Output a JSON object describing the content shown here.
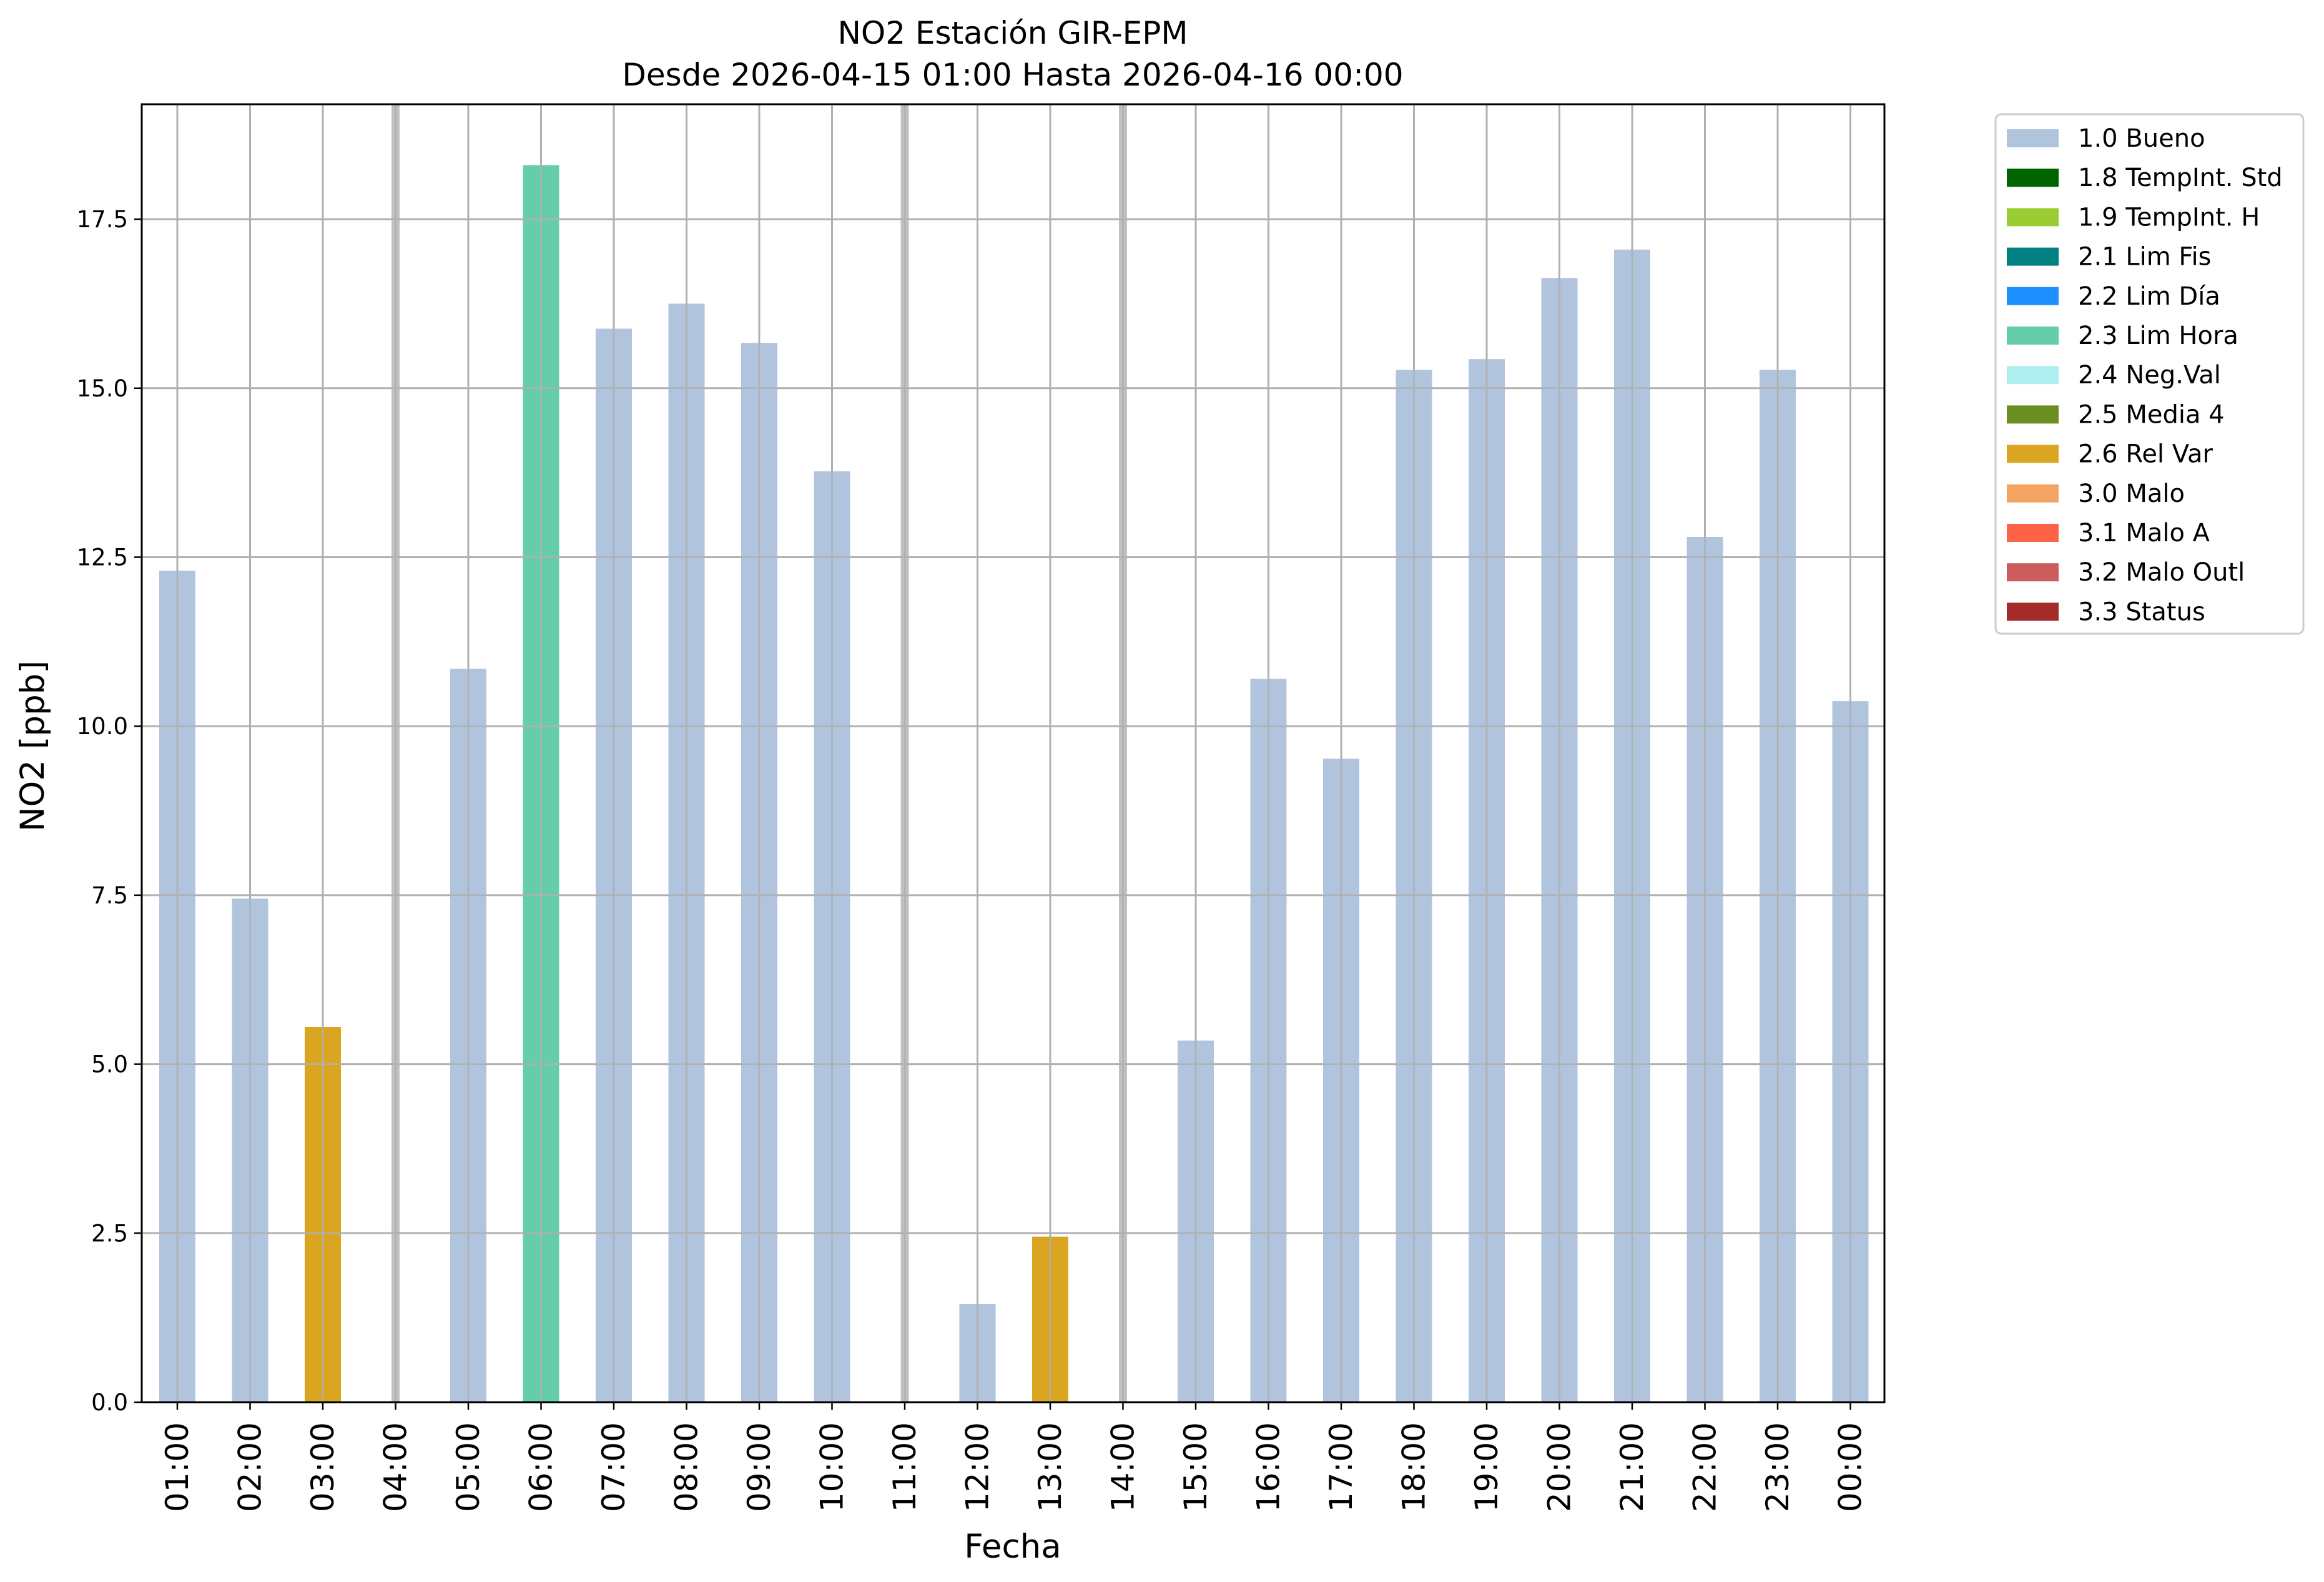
{
  "chart_data": {
    "type": "bar",
    "title": "NO2 Estación GIR-EPM",
    "subtitle": "Desde 2026-04-15 01:00 Hasta 2026-04-16 00:00",
    "xlabel": "Fecha",
    "ylabel": "NO2 [ppb]",
    "ylim": [
      0,
      19.2
    ],
    "yticks": [
      "0.0",
      "2.5",
      "5.0",
      "7.5",
      "10.0",
      "12.5",
      "15.0",
      "17.5"
    ],
    "ytick_values": [
      0,
      2.5,
      5,
      7.5,
      10,
      12.5,
      15,
      17.5
    ],
    "grid": true,
    "legend_position": "outside-top-right",
    "categories": [
      "01:00",
      "02:00",
      "03:00",
      "04:00",
      "05:00",
      "06:00",
      "07:00",
      "08:00",
      "09:00",
      "10:00",
      "11:00",
      "12:00",
      "13:00",
      "14:00",
      "15:00",
      "16:00",
      "17:00",
      "18:00",
      "19:00",
      "20:00",
      "21:00",
      "22:00",
      "23:00",
      "00:00"
    ],
    "values": [
      12.3,
      7.45,
      5.55,
      null,
      10.85,
      18.3,
      15.88,
      16.25,
      15.67,
      13.77,
      null,
      1.45,
      2.45,
      null,
      5.35,
      10.7,
      9.52,
      15.27,
      15.43,
      16.63,
      17.05,
      12.8,
      15.27,
      10.37
    ],
    "flags": [
      "1.0",
      "1.0",
      "2.6",
      null,
      "1.0",
      "2.3",
      "1.0",
      "1.0",
      "1.0",
      "1.0",
      null,
      "1.0",
      "2.6",
      null,
      "1.0",
      "1.0",
      "1.0",
      "1.0",
      "1.0",
      "1.0",
      "1.0",
      "1.0",
      "1.0",
      "1.0"
    ],
    "missing_markers": [
      "04:00",
      "11:00",
      "14:00"
    ],
    "legend": [
      {
        "code": "1.0",
        "label": "1.0 Bueno",
        "color": "#b0c4de"
      },
      {
        "code": "1.8",
        "label": "1.8 TempInt. Std",
        "color": "#006400"
      },
      {
        "code": "1.9",
        "label": "1.9 TempInt. H",
        "color": "#9acd32"
      },
      {
        "code": "2.1",
        "label": "2.1 Lim Fis",
        "color": "#008080"
      },
      {
        "code": "2.2",
        "label": "2.2 Lim Día",
        "color": "#1e90ff"
      },
      {
        "code": "2.3",
        "label": "2.3 Lim Hora",
        "color": "#66cdaa"
      },
      {
        "code": "2.4",
        "label": "2.4 Neg.Val",
        "color": "#afeeee"
      },
      {
        "code": "2.5",
        "label": "2.5 Media 4",
        "color": "#6b8e23"
      },
      {
        "code": "2.6",
        "label": "2.6 Rel Var",
        "color": "#daa520"
      },
      {
        "code": "3.0",
        "label": "3.0 Malo",
        "color": "#f4a460"
      },
      {
        "code": "3.1",
        "label": "3.1 Malo A",
        "color": "#ff6347"
      },
      {
        "code": "3.2",
        "label": "3.2 Malo Outl",
        "color": "#cd5c5c"
      },
      {
        "code": "3.3",
        "label": "3.3 Status",
        "color": "#a52a2a"
      }
    ],
    "colors": {
      "grid": "#b0b0b0",
      "missing": "#c0c0c0",
      "axes": "#000000"
    }
  }
}
